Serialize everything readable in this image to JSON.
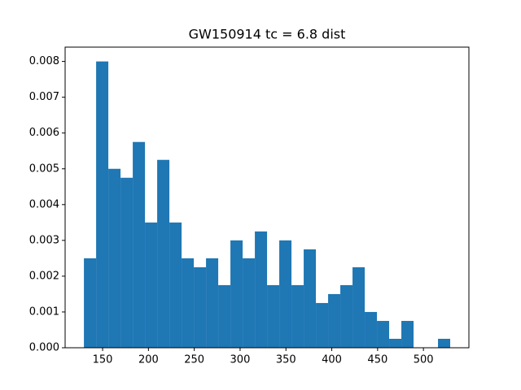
{
  "chart_data": {
    "type": "histogram",
    "title": "GW150914 tc = 6.8 dist",
    "bins": [
      129.6,
      142.92,
      156.24,
      169.56,
      182.88,
      196.2,
      209.52,
      222.84,
      236.16,
      249.48,
      262.8,
      276.12,
      289.44,
      302.76,
      316.08,
      329.4,
      342.72,
      356.04,
      369.36,
      382.68,
      396,
      409.32,
      422.64,
      435.96,
      449.28,
      462.6,
      475.92,
      489.24,
      502.56,
      515.88,
      529.2
    ],
    "values": [
      0.0025,
      0.008,
      0.005,
      0.00475,
      0.00575,
      0.0035,
      0.00525,
      0.0035,
      0.0025,
      0.00225,
      0.0025,
      0.00175,
      0.003,
      0.0025,
      0.00325,
      0.00175,
      0.003,
      0.00175,
      0.00275,
      0.00125,
      0.0015,
      0.00175,
      0.00225,
      0.001,
      0.00075,
      0.00025,
      0.00075,
      0,
      0,
      0.00025
    ],
    "color": "#1f77b4",
    "xlim": [
      109.1,
      549.6
    ],
    "xticks": [
      150,
      200,
      250,
      300,
      350,
      400,
      450,
      500
    ],
    "ylim": [
      0,
      0.0084
    ],
    "yticks": [
      {
        "value": 0,
        "label": "0.000"
      },
      {
        "value": 0.001,
        "label": "0.001"
      },
      {
        "value": 0.002,
        "label": "0.002"
      },
      {
        "value": 0.003,
        "label": "0.003"
      },
      {
        "value": 0.004,
        "label": "0.004"
      },
      {
        "value": 0.005,
        "label": "0.005"
      },
      {
        "value": 0.006,
        "label": "0.006"
      },
      {
        "value": 0.007,
        "label": "0.007"
      },
      {
        "value": 0.008,
        "label": "0.008"
      }
    ]
  }
}
